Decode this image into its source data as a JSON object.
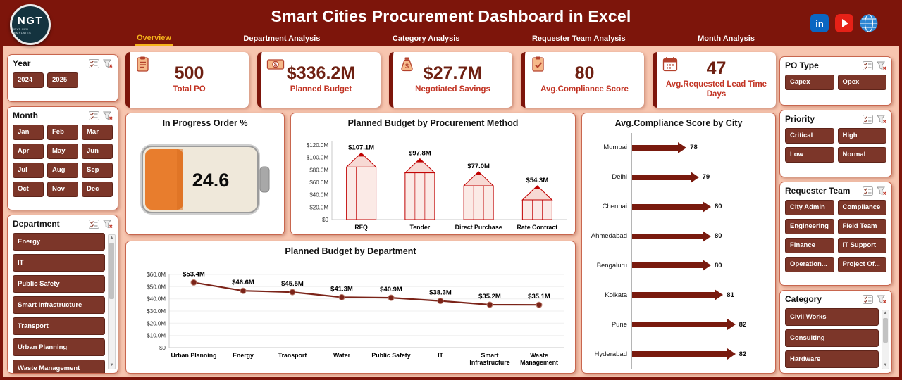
{
  "header": {
    "title": "Smart Cities Procurement Dashboard in Excel",
    "logo_text": "NGT",
    "logo_subtext": "NEXT GEN TEMPLATES",
    "linkedin_glyph": "in"
  },
  "tabs": [
    {
      "label": "Overview",
      "active": true
    },
    {
      "label": "Department Analysis",
      "active": false
    },
    {
      "label": "Category Analysis",
      "active": false
    },
    {
      "label": "Requester Team Analysis",
      "active": false
    },
    {
      "label": "Month Analysis",
      "active": false
    }
  ],
  "kpis": [
    {
      "icon": "total-po-icon",
      "value": "500",
      "label": "Total PO"
    },
    {
      "icon": "planned-budget-icon",
      "value": "$336.2M",
      "label": "Planned Budget"
    },
    {
      "icon": "negotiated-savings-icon",
      "value": "$27.7M",
      "label": "Negotiated Savings"
    },
    {
      "icon": "compliance-score-icon",
      "value": "80",
      "label": "Avg.Compliance Score"
    },
    {
      "icon": "lead-time-icon",
      "value": "47",
      "label": "Avg.Requested Lead Time Days"
    }
  ],
  "gauge": {
    "title": "In Progress Order %",
    "value": "24.6"
  },
  "slicers": {
    "year": {
      "title": "Year",
      "options": [
        "2024",
        "2025"
      ]
    },
    "month": {
      "title": "Month",
      "options": [
        "Jan",
        "Feb",
        "Mar",
        "Apr",
        "May",
        "Jun",
        "Jul",
        "Aug",
        "Sep",
        "Oct",
        "Nov",
        "Dec"
      ]
    },
    "department": {
      "title": "Department",
      "options": [
        "Energy",
        "IT",
        "Public Safety",
        "Smart Infrastructure",
        "Transport",
        "Urban Planning",
        "Waste Management"
      ]
    },
    "po_type": {
      "title": "PO Type",
      "options": [
        "Capex",
        "Opex"
      ]
    },
    "priority": {
      "title": "Priority",
      "options": [
        "Critical",
        "High",
        "Low",
        "Normal"
      ]
    },
    "requester_team": {
      "title": "Requester Team",
      "options": [
        "City Admin",
        "Compliance",
        "Engineering",
        "Field Team",
        "Finance",
        "IT Support",
        "Operation...",
        "Project Of..."
      ]
    },
    "category": {
      "title": "Category",
      "options": [
        "Civil Works",
        "Consulting",
        "Hardware"
      ]
    }
  },
  "colors": {
    "header_red": "#7D150B",
    "accent_gold": "#F5B31B",
    "pencil_red": "#C00000",
    "arrow_maroon": "#791A0E",
    "button_brown": "#7C3629",
    "background_pink": "#F7C5AF"
  },
  "chart_data": [
    {
      "type": "bar",
      "title": "Planned Budget by Procurement Method",
      "categories": [
        "RFQ",
        "Tender",
        "Direct Purchase",
        "Rate Contract"
      ],
      "values": [
        107.1,
        97.8,
        77.0,
        54.3
      ],
      "labels": [
        "$107.1M",
        "$97.8M",
        "$77.0M",
        "$54.3M"
      ],
      "ylim": [
        0,
        120
      ],
      "ytick_values": [
        120,
        100,
        80,
        60,
        40,
        20,
        0
      ],
      "ytick_labels": [
        "$120.0M",
        "$100.0M",
        "$80.0M",
        "$60.0M",
        "$40.0M",
        "$20.0M",
        "$0"
      ]
    },
    {
      "type": "line",
      "title": "Planned Budget by Department",
      "categories": [
        "Urban Planning",
        "Energy",
        "Transport",
        "Water",
        "Public Safety",
        "IT",
        "Smart Infrastructure",
        "Waste Management"
      ],
      "category_lines": [
        [
          "Urban Planning"
        ],
        [
          "Energy"
        ],
        [
          "Transport"
        ],
        [
          "Water"
        ],
        [
          "Public Safety"
        ],
        [
          "IT"
        ],
        [
          "Smart",
          "Infrastructure"
        ],
        [
          "Waste",
          "Management"
        ]
      ],
      "values": [
        53.4,
        46.6,
        45.5,
        41.3,
        40.9,
        38.3,
        35.2,
        35.1
      ],
      "labels": [
        "$53.4M",
        "$46.6M",
        "$45.5M",
        "$41.3M",
        "$40.9M",
        "$38.3M",
        "$35.2M",
        "$35.1M"
      ],
      "ylim": [
        0,
        60
      ],
      "ytick_values": [
        60,
        50,
        40,
        30,
        20,
        10,
        0
      ],
      "ytick_labels": [
        "$60.0M",
        "$50.0M",
        "$40.0M",
        "$30.0M",
        "$20.0M",
        "$10.0M",
        "$0"
      ]
    },
    {
      "type": "bar",
      "orientation": "horizontal",
      "title": "Avg.Compliance Score by City",
      "categories": [
        "Mumbai",
        "Delhi",
        "Chennai",
        "Ahmedabad",
        "Bengaluru",
        "Kolkata",
        "Pune",
        "Hyderabad"
      ],
      "values": [
        78,
        79,
        80,
        80,
        80,
        81,
        82,
        82
      ]
    }
  ]
}
